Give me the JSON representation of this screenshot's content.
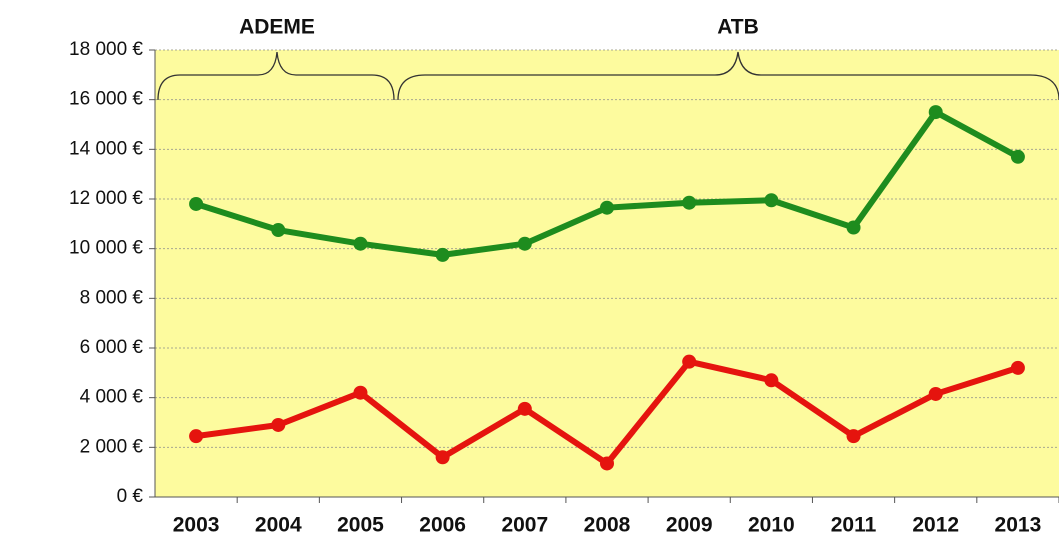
{
  "chart_data": {
    "type": "line",
    "annotations": [
      {
        "text": "ADEME"
      },
      {
        "text": "ATB"
      }
    ],
    "categories": [
      "2003",
      "2004",
      "2005",
      "2006",
      "2007",
      "2008",
      "2009",
      "2010",
      "2011",
      "2012",
      "2013"
    ],
    "series": [
      {
        "color": "#1e8c1e",
        "values": [
          11800,
          10750,
          10200,
          9750,
          10200,
          11650,
          11850,
          11950,
          10850,
          15500,
          13700
        ]
      },
      {
        "color": "#e5140e",
        "values": [
          2450,
          2900,
          4200,
          1600,
          3550,
          1350,
          5450,
          4700,
          2450,
          4150,
          5200
        ]
      }
    ],
    "ylim": [
      0,
      18000
    ],
    "yticks": [
      {
        "value": 0,
        "label": "0 €"
      },
      {
        "value": 2000,
        "label": "2 000 €"
      },
      {
        "value": 4000,
        "label": "4 000 €"
      },
      {
        "value": 6000,
        "label": "6 000 €"
      },
      {
        "value": 8000,
        "label": "8 000 €"
      },
      {
        "value": 10000,
        "label": "10 000 €"
      },
      {
        "value": 12000,
        "label": "12 000 €"
      },
      {
        "value": 14000,
        "label": "14 000 €"
      },
      {
        "value": 16000,
        "label": "16 000 €"
      },
      {
        "value": 18000,
        "label": "18 000 €"
      }
    ],
    "grid": true,
    "background": "#fdfb9e"
  }
}
